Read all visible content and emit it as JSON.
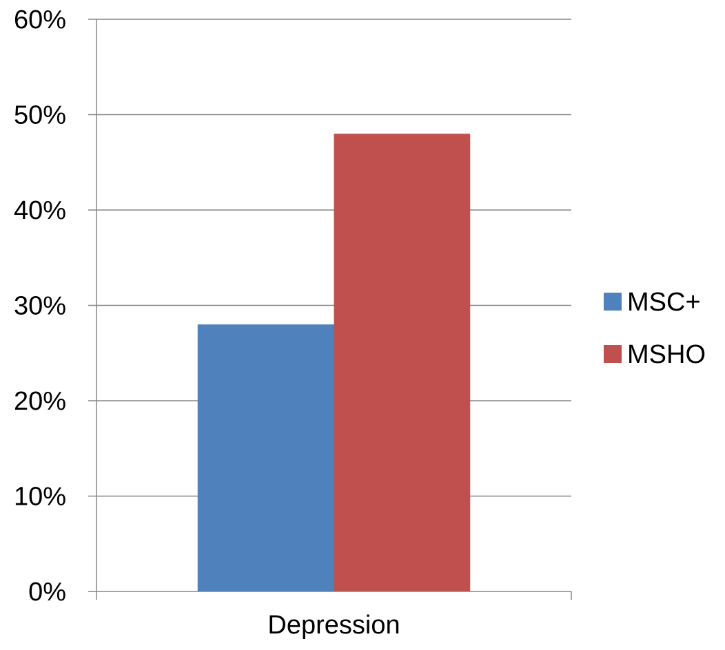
{
  "chart_data": {
    "type": "bar",
    "title": "",
    "xlabel": "",
    "ylabel": "",
    "categories": [
      "Depression"
    ],
    "series": [
      {
        "name": "MSC+",
        "values": [
          0.28
        ],
        "color": "#4F81BD"
      },
      {
        "name": "MSHO",
        "values": [
          0.48
        ],
        "color": "#C0504D"
      }
    ],
    "ylim": [
      0,
      0.6
    ],
    "yticks": [
      0,
      0.1,
      0.2,
      0.3,
      0.4,
      0.5,
      0.6
    ],
    "ytick_labels": [
      "0%",
      "10%",
      "20%",
      "30%",
      "40%",
      "50%",
      "60%"
    ],
    "grid": true,
    "gridline_color": "#868686",
    "legend_position": "right"
  }
}
